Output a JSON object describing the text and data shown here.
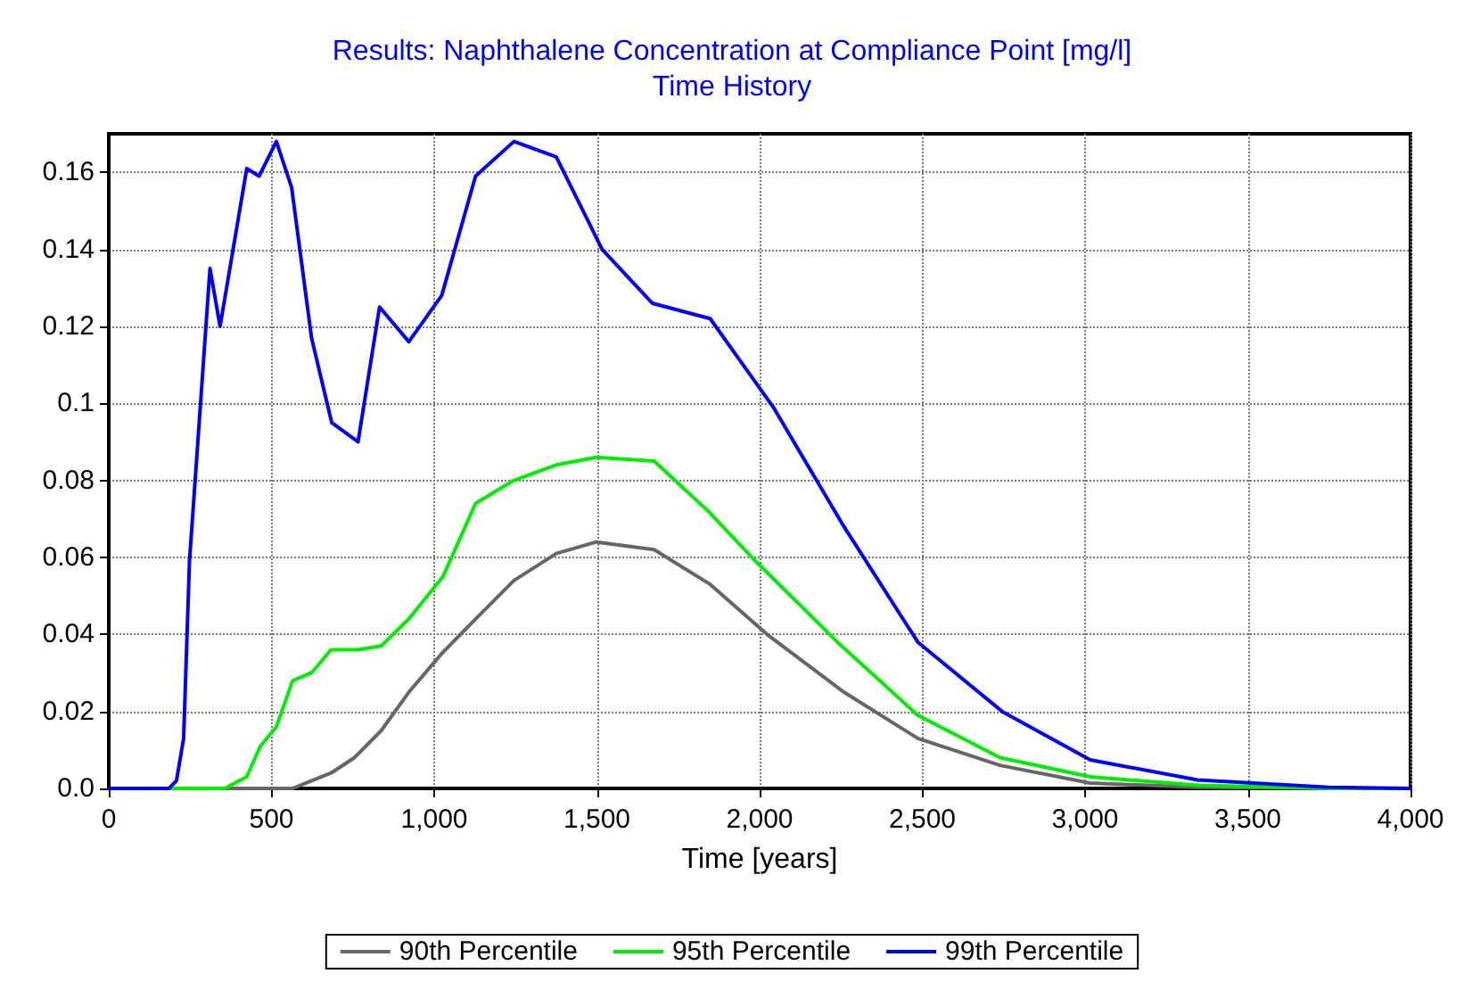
{
  "chart_data": {
    "type": "line",
    "title": "Results: Naphthalene Concentration at Compliance Point [mg/l]",
    "subtitle": "Time History",
    "xlabel": "Time [years]",
    "xlim": [
      0,
      4000
    ],
    "xticks": [
      0,
      500,
      {
        "value": 1000,
        "label": "1,000"
      },
      {
        "value": 1500,
        "label": "1,500"
      },
      {
        "value": 2000,
        "label": "2,000"
      },
      {
        "value": 2500,
        "label": "2,500"
      },
      {
        "value": 3000,
        "label": "3,000"
      },
      {
        "value": 3500,
        "label": "3,500"
      },
      {
        "value": 4000,
        "label": "4,000"
      }
    ],
    "ylim": [
      0,
      0.17
    ],
    "yticks": [
      {
        "value": 0,
        "label": "0.0"
      },
      0.02,
      0.04,
      0.06,
      0.08,
      0.1,
      0.12,
      0.14,
      0.16
    ],
    "grid": true,
    "legend": "bottom",
    "marker": "none",
    "line_style": "solid",
    "series": [
      {
        "name": "90th Percentile",
        "color": "#666666",
        "x": [
          0,
          500,
          565,
          623,
          683,
          755,
          837,
          922,
          1023,
          1127,
          1245,
          1375,
          1498,
          1676,
          1848,
          2023,
          2259,
          2486,
          2739,
          3016,
          3346,
          4000
        ],
        "values": [
          0,
          0,
          0,
          0.002,
          0.004,
          0.008,
          0.015,
          0.025,
          0.035,
          0.044,
          0.054,
          0.061,
          0.064,
          0.062,
          0.053,
          0.04,
          0.025,
          0.013,
          0.006,
          0.0014,
          0.0003,
          0
        ]
      },
      {
        "name": "95th Percentile",
        "color": "#00ee00",
        "x": [
          0,
          357,
          424,
          466,
          515,
          565,
          623,
          683,
          766,
          837,
          922,
          1027,
          1127,
          1245,
          1375,
          1498,
          1676,
          1842,
          1988,
          2239,
          2486,
          2739,
          3016,
          3346,
          3750,
          4000
        ],
        "values": [
          0,
          0,
          0.003,
          0.011,
          0.016,
          0.028,
          0.03,
          0.036,
          0.036,
          0.037,
          0.044,
          0.055,
          0.074,
          0.08,
          0.084,
          0.086,
          0.085,
          0.072,
          0.059,
          0.038,
          0.019,
          0.008,
          0.003,
          0.0008,
          0,
          0
        ]
      },
      {
        "name": "99th Percentile",
        "color": "#0000ff",
        "x": [
          0,
          185,
          208,
          230,
          248,
          311,
          342,
          424,
          462,
          515,
          562,
          623,
          685,
          766,
          832,
          922,
          1023,
          1127,
          1245,
          1375,
          1516,
          1670,
          1848,
          2042,
          2259,
          2486,
          2745,
          3016,
          3346,
          3750,
          4000
        ],
        "values": [
          0,
          0,
          0.002,
          0.013,
          0.059,
          0.135,
          0.12,
          0.161,
          0.159,
          0.168,
          0.156,
          0.117,
          0.095,
          0.09,
          0.125,
          0.116,
          0.128,
          0.159,
          0.168,
          0.164,
          0.14,
          0.126,
          0.122,
          0.099,
          0.068,
          0.038,
          0.02,
          0.0074,
          0.0022,
          0.0003,
          0
        ]
      }
    ]
  }
}
